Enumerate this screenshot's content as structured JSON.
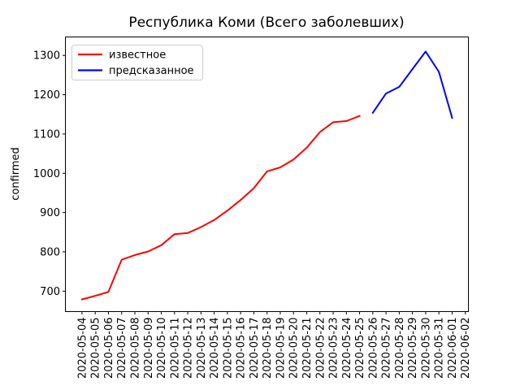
{
  "chart_data": {
    "type": "line",
    "title": "Республика Коми (Всего заболевших)",
    "xlabel": "",
    "ylabel": "confirmed",
    "categories": [
      "2020-05-04",
      "2020-05-05",
      "2020-05-06",
      "2020-05-07",
      "2020-05-08",
      "2020-05-09",
      "2020-05-10",
      "2020-05-11",
      "2020-05-12",
      "2020-05-13",
      "2020-05-14",
      "2020-05-15",
      "2020-05-16",
      "2020-05-17",
      "2020-05-18",
      "2020-05-19",
      "2020-05-20",
      "2020-05-21",
      "2020-05-22",
      "2020-05-23",
      "2020-05-24",
      "2020-05-25",
      "2020-05-26",
      "2020-05-27",
      "2020-05-28",
      "2020-05-29",
      "2020-05-30",
      "2020-05-31",
      "2020-06-01",
      "2020-06-02"
    ],
    "series": [
      {
        "name": "известное",
        "color": "#ff0000",
        "start_index": 0,
        "values": [
          679,
          688,
          698,
          780,
          792,
          801,
          817,
          845,
          848,
          863,
          881,
          905,
          932,
          962,
          1005,
          1015,
          1035,
          1065,
          1105,
          1130,
          1133,
          1146
        ]
      },
      {
        "name": "предсказанное",
        "color": "#0000ff",
        "start_index": 22,
        "values": [
          1154,
          1203,
          1220,
          1265,
          1310,
          1258,
          1141
        ]
      }
    ],
    "yticks": [
      700,
      800,
      900,
      1000,
      1100,
      1200,
      1300
    ],
    "ylim": [
      649,
      1348
    ],
    "grid": false,
    "legend_position": "upper left"
  }
}
